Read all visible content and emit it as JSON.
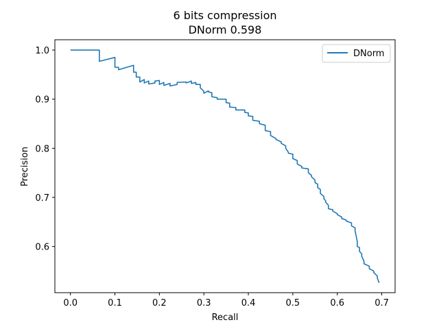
{
  "chart_data": {
    "type": "line",
    "title": "6 bits compression",
    "subtitle": "DNorm 0.598",
    "xlabel": "Recall",
    "ylabel": "Precision",
    "xlim": [
      -0.035,
      0.73
    ],
    "ylim": [
      0.506,
      1.021
    ],
    "xticks": [
      0.0,
      0.1,
      0.2,
      0.3,
      0.4,
      0.5,
      0.6,
      0.7
    ],
    "xtick_labels": [
      "0.0",
      "0.1",
      "0.2",
      "0.3",
      "0.4",
      "0.5",
      "0.6",
      "0.7"
    ],
    "yticks": [
      0.6,
      0.7,
      0.8,
      0.9,
      1.0
    ],
    "ytick_labels": [
      "0.6",
      "0.7",
      "0.8",
      "0.9",
      "1.0"
    ],
    "grid": false,
    "legend_position": "top-right",
    "series": [
      {
        "name": "DNorm",
        "color": "#1f77b4",
        "x": [
          0.0,
          0.065,
          0.065,
          0.1,
          0.1,
          0.108,
          0.108,
          0.142,
          0.142,
          0.148,
          0.148,
          0.156,
          0.156,
          0.166,
          0.166,
          0.176,
          0.176,
          0.19,
          0.19,
          0.2,
          0.2,
          0.21,
          0.21,
          0.224,
          0.224,
          0.24,
          0.24,
          0.26,
          0.26,
          0.272,
          0.272,
          0.282,
          0.282,
          0.292,
          0.292,
          0.3,
          0.3,
          0.31,
          0.31,
          0.318,
          0.318,
          0.33,
          0.33,
          0.35,
          0.35,
          0.358,
          0.358,
          0.372,
          0.372,
          0.392,
          0.392,
          0.4,
          0.4,
          0.41,
          0.41,
          0.425,
          0.425,
          0.438,
          0.438,
          0.45,
          0.45,
          0.462,
          0.462,
          0.474,
          0.474,
          0.484,
          0.484,
          0.49,
          0.49,
          0.5,
          0.5,
          0.51,
          0.51,
          0.52,
          0.52,
          0.535,
          0.535,
          0.542,
          0.542,
          0.55,
          0.55,
          0.556,
          0.556,
          0.562,
          0.562,
          0.57,
          0.57,
          0.574,
          0.574,
          0.58,
          0.58,
          0.59,
          0.59,
          0.6,
          0.6,
          0.61,
          0.61,
          0.62,
          0.62,
          0.632,
          0.632,
          0.64,
          0.64,
          0.645,
          0.645,
          0.65,
          0.65,
          0.655,
          0.655,
          0.66,
          0.66,
          0.672,
          0.672,
          0.682,
          0.682,
          0.69,
          0.69,
          0.694
        ],
        "y": [
          1.0,
          1.0,
          0.977,
          0.985,
          0.965,
          0.965,
          0.96,
          0.969,
          0.955,
          0.955,
          0.945,
          0.945,
          0.935,
          0.94,
          0.933,
          0.937,
          0.931,
          0.933,
          0.937,
          0.938,
          0.93,
          0.934,
          0.928,
          0.932,
          0.927,
          0.93,
          0.934,
          0.935,
          0.933,
          0.937,
          0.932,
          0.934,
          0.93,
          0.93,
          0.923,
          0.916,
          0.912,
          0.917,
          0.915,
          0.913,
          0.905,
          0.903,
          0.9,
          0.9,
          0.893,
          0.892,
          0.884,
          0.883,
          0.878,
          0.878,
          0.873,
          0.872,
          0.866,
          0.865,
          0.857,
          0.855,
          0.85,
          0.847,
          0.836,
          0.834,
          0.826,
          0.82,
          0.818,
          0.813,
          0.81,
          0.805,
          0.8,
          0.792,
          0.79,
          0.788,
          0.779,
          0.775,
          0.768,
          0.763,
          0.76,
          0.758,
          0.75,
          0.745,
          0.742,
          0.735,
          0.73,
          0.727,
          0.72,
          0.716,
          0.708,
          0.702,
          0.697,
          0.693,
          0.69,
          0.684,
          0.677,
          0.675,
          0.672,
          0.667,
          0.665,
          0.66,
          0.657,
          0.654,
          0.652,
          0.648,
          0.642,
          0.638,
          0.632,
          0.61,
          0.6,
          0.598,
          0.59,
          0.585,
          0.58,
          0.57,
          0.565,
          0.56,
          0.555,
          0.55,
          0.547,
          0.54,
          0.536,
          0.526
        ]
      }
    ]
  }
}
